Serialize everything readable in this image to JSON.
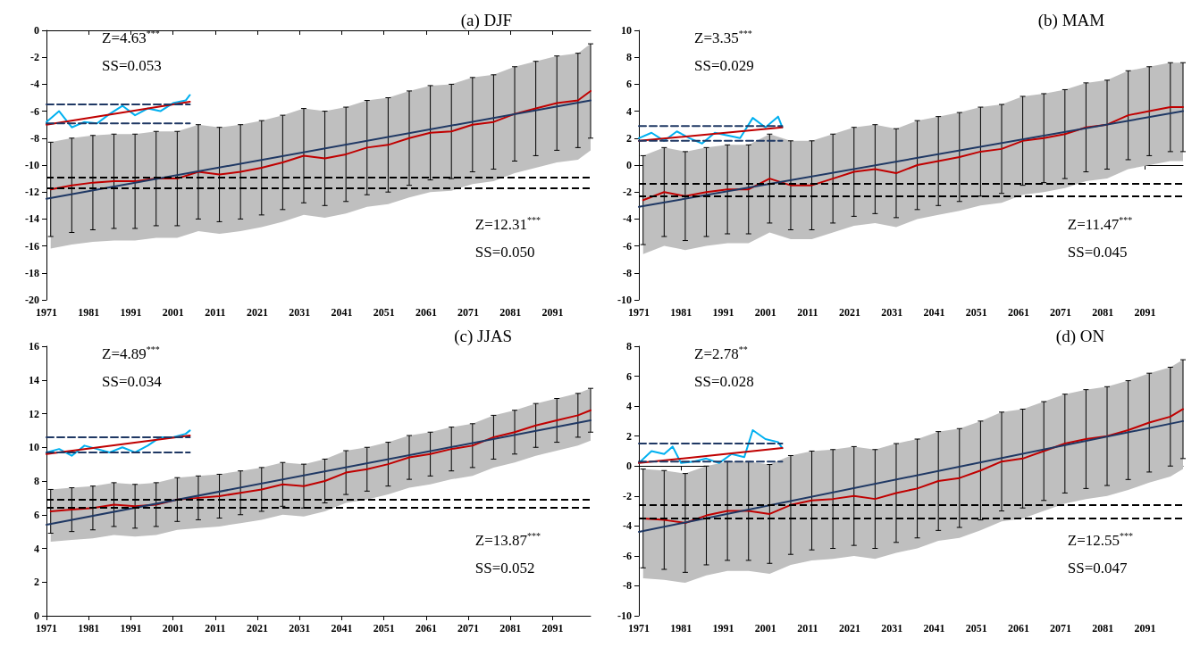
{
  "chart_data": [
    {
      "type": "line",
      "title": "(a) DJF",
      "marker": "none",
      "xlim": [
        1971,
        2100
      ],
      "xticks": [
        1971,
        1981,
        1991,
        2001,
        2011,
        2021,
        2031,
        2041,
        2051,
        2061,
        2071,
        2081,
        2091
      ],
      "ylim": [
        -20,
        0
      ],
      "yticks": [
        -20,
        -18,
        -16,
        -14,
        -12,
        -10,
        -8,
        -6,
        -4,
        -2,
        0
      ],
      "annotations": [
        "Z=4.63$^{***}$",
        "SS=0.053",
        "Z=12.31$^{***}$",
        "SS=0.050"
      ],
      "ref_lines": [
        {
          "axis": "y",
          "value": -10.9,
          "color": "#000000",
          "line_style": "dashed"
        },
        {
          "axis": "y",
          "value": -11.7,
          "color": "#000000",
          "line_style": "dashed"
        }
      ],
      "series": [
        {
          "color": "#c00000",
          "x": [
            1972,
            1977,
            1982,
            1987,
            1992,
            1997,
            2002,
            2007,
            2012,
            2017,
            2022,
            2027,
            2032,
            2037,
            2042,
            2047,
            2052,
            2057,
            2062,
            2067,
            2072,
            2077,
            2082,
            2087,
            2092,
            2097,
            2100
          ],
          "values": [
            -11.8,
            -11.5,
            -11.3,
            -11.2,
            -11.2,
            -11.0,
            -11.0,
            -10.5,
            -10.7,
            -10.5,
            -10.2,
            -9.8,
            -9.3,
            -9.5,
            -9.2,
            -8.7,
            -8.5,
            -8.0,
            -7.6,
            -7.5,
            -7.0,
            -6.8,
            -6.2,
            -5.8,
            -5.4,
            -5.2,
            -4.5
          ],
          "errors": [
            3.5,
            3.5,
            3.5,
            3.5,
            3.5,
            3.5,
            3.5,
            3.5,
            3.5,
            3.5,
            3.5,
            3.5,
            3.5,
            3.5,
            3.5,
            3.5,
            3.5,
            3.5,
            3.5,
            3.5,
            3.5,
            3.5,
            3.5,
            3.5,
            3.5,
            3.5,
            3.5
          ],
          "lower": [
            -16.2,
            -15.9,
            -15.7,
            -15.6,
            -15.6,
            -15.4,
            -15.4,
            -14.9,
            -15.1,
            -14.9,
            -14.6,
            -14.2,
            -13.7,
            -13.9,
            -13.6,
            -13.1,
            -12.9,
            -12.4,
            -12.0,
            -11.9,
            -11.4,
            -11.2,
            -10.6,
            -10.2,
            -9.8,
            -9.6,
            -8.9
          ],
          "upper": [
            -8.3,
            -8.0,
            -7.8,
            -7.7,
            -7.7,
            -7.5,
            -7.5,
            -7.0,
            -7.2,
            -7.0,
            -6.7,
            -6.3,
            -5.8,
            -6.0,
            -5.7,
            -5.2,
            -5.0,
            -4.5,
            -4.1,
            -4.0,
            -3.5,
            -3.3,
            -2.7,
            -2.3,
            -1.9,
            -1.7,
            -1.0
          ]
        },
        {
          "color": "#00b0f0",
          "x": [
            1971,
            1974,
            1977,
            1980,
            1983,
            1986,
            1989,
            1992,
            1995,
            1998,
            2001,
            2004,
            2005
          ],
          "values": [
            -6.8,
            -6.0,
            -7.2,
            -6.8,
            -6.9,
            -6.2,
            -5.6,
            -6.3,
            -5.8,
            -6.0,
            -5.4,
            -5.2,
            -4.8
          ]
        },
        {
          "color": "#c00000",
          "x": [
            1971,
            2005
          ],
          "values": [
            -7.0,
            -5.3
          ]
        },
        {
          "color": "#1f3864",
          "x": [
            1971,
            2100
          ],
          "values": [
            -12.5,
            -5.2
          ]
        },
        {
          "color": "#1f3864",
          "line_style": "dashed",
          "x": [
            1971,
            2005
          ],
          "values": [
            -5.5,
            -5.5
          ]
        },
        {
          "color": "#1f3864",
          "line_style": "dashed",
          "x": [
            1971,
            2005
          ],
          "values": [
            -6.9,
            -6.9
          ]
        }
      ]
    },
    {
      "type": "line",
      "title": "(b) MAM",
      "marker": "none",
      "xlim": [
        1971,
        2100
      ],
      "xticks": [
        1971,
        1981,
        1991,
        2001,
        2011,
        2021,
        2031,
        2041,
        2051,
        2061,
        2071,
        2081,
        2091
      ],
      "ylim": [
        -10,
        10
      ],
      "yticks": [
        -10,
        -8,
        -6,
        -4,
        -2,
        0,
        2,
        4,
        6,
        8,
        10
      ],
      "annotations": [
        "Z=3.35$^{***}$",
        "SS=0.029",
        "Z=11.47$^{***}$",
        "SS=0.045"
      ],
      "ref_lines": [
        {
          "axis": "y",
          "value": -1.4,
          "color": "#000000",
          "line_style": "dashed"
        },
        {
          "axis": "y",
          "value": -2.3,
          "color": "#000000",
          "line_style": "dashed"
        }
      ],
      "series": [
        {
          "color": "#c00000",
          "x": [
            1972,
            1977,
            1982,
            1987,
            1992,
            1997,
            2002,
            2007,
            2012,
            2017,
            2022,
            2027,
            2032,
            2037,
            2042,
            2047,
            2052,
            2057,
            2062,
            2067,
            2072,
            2077,
            2082,
            2087,
            2092,
            2097,
            2100
          ],
          "values": [
            -2.6,
            -2.0,
            -2.3,
            -2.0,
            -1.8,
            -1.8,
            -1.0,
            -1.5,
            -1.5,
            -1.0,
            -0.5,
            -0.3,
            -0.6,
            0.0,
            0.3,
            0.6,
            1.0,
            1.2,
            1.8,
            2.0,
            2.3,
            2.8,
            3.0,
            3.7,
            4.0,
            4.3,
            4.3
          ],
          "errors": [
            3.3,
            3.3,
            3.3,
            3.3,
            3.3,
            3.3,
            3.3,
            3.3,
            3.3,
            3.3,
            3.3,
            3.3,
            3.3,
            3.3,
            3.3,
            3.3,
            3.3,
            3.3,
            3.3,
            3.3,
            3.3,
            3.3,
            3.3,
            3.3,
            3.3,
            3.3,
            3.3
          ],
          "lower": [
            -6.6,
            -6.0,
            -6.3,
            -6.0,
            -5.8,
            -5.8,
            -5.0,
            -5.5,
            -5.5,
            -5.0,
            -4.5,
            -4.3,
            -4.6,
            -4.0,
            -3.7,
            -3.4,
            -3.0,
            -2.8,
            -2.2,
            -2.0,
            -1.7,
            -1.2,
            -1.0,
            -0.3,
            0.0,
            0.3,
            0.3
          ],
          "upper": [
            0.7,
            1.3,
            1.0,
            1.3,
            1.5,
            1.5,
            2.3,
            1.8,
            1.8,
            2.3,
            2.8,
            3.0,
            2.7,
            3.3,
            3.6,
            3.9,
            4.3,
            4.5,
            5.1,
            5.3,
            5.6,
            6.1,
            6.3,
            7.0,
            7.3,
            7.6,
            7.6
          ]
        },
        {
          "color": "#00b0f0",
          "x": [
            1971,
            1974,
            1977,
            1980,
            1983,
            1986,
            1989,
            1992,
            1995,
            1998,
            2001,
            2004,
            2005
          ],
          "values": [
            2.0,
            2.4,
            1.8,
            2.5,
            2.0,
            1.6,
            2.4,
            2.2,
            2.0,
            3.5,
            2.8,
            3.6,
            2.8
          ]
        },
        {
          "color": "#c00000",
          "x": [
            1971,
            2005
          ],
          "values": [
            1.8,
            2.8
          ]
        },
        {
          "color": "#1f3864",
          "x": [
            1971,
            2100
          ],
          "values": [
            -3.1,
            4.0
          ]
        },
        {
          "color": "#1f3864",
          "line_style": "dashed",
          "x": [
            1971,
            2005
          ],
          "values": [
            2.9,
            2.9
          ]
        },
        {
          "color": "#1f3864",
          "line_style": "dashed",
          "x": [
            1971,
            2005
          ],
          "values": [
            1.8,
            1.8
          ]
        }
      ]
    },
    {
      "type": "line",
      "title": "(c) JJAS",
      "marker": "none",
      "xlim": [
        1971,
        2100
      ],
      "xticks": [
        1971,
        1981,
        1991,
        2001,
        2011,
        2021,
        2031,
        2041,
        2051,
        2061,
        2071,
        2081,
        2091
      ],
      "ylim": [
        0,
        16
      ],
      "yticks": [
        0,
        2,
        4,
        6,
        8,
        10,
        12,
        14,
        16
      ],
      "annotations": [
        "Z=4.89$^{***}$",
        "SS=0.034",
        "Z=13.87$^{***}$",
        "SS=0.052"
      ],
      "ref_lines": [
        {
          "axis": "y",
          "value": 6.9,
          "color": "#000000",
          "line_style": "dashed"
        },
        {
          "axis": "y",
          "value": 6.4,
          "color": "#000000",
          "line_style": "dashed"
        }
      ],
      "series": [
        {
          "color": "#c00000",
          "x": [
            1972,
            1977,
            1982,
            1987,
            1992,
            1997,
            2002,
            2007,
            2012,
            2017,
            2022,
            2027,
            2032,
            2037,
            2042,
            2047,
            2052,
            2057,
            2062,
            2067,
            2072,
            2077,
            2082,
            2087,
            2092,
            2097,
            2100
          ],
          "values": [
            6.2,
            6.3,
            6.4,
            6.6,
            6.5,
            6.6,
            6.9,
            7.0,
            7.1,
            7.3,
            7.5,
            7.8,
            7.7,
            8.0,
            8.5,
            8.7,
            9.0,
            9.4,
            9.6,
            9.9,
            10.1,
            10.6,
            10.9,
            11.3,
            11.6,
            11.9,
            12.2
          ],
          "errors": [
            1.3,
            1.3,
            1.3,
            1.3,
            1.3,
            1.3,
            1.3,
            1.3,
            1.3,
            1.3,
            1.3,
            1.3,
            1.3,
            1.3,
            1.3,
            1.3,
            1.3,
            1.3,
            1.3,
            1.3,
            1.3,
            1.3,
            1.3,
            1.3,
            1.3,
            1.3,
            1.3
          ],
          "lower": [
            4.4,
            4.5,
            4.6,
            4.8,
            4.7,
            4.8,
            5.1,
            5.2,
            5.3,
            5.5,
            5.7,
            6.0,
            5.9,
            6.2,
            6.7,
            6.9,
            7.2,
            7.6,
            7.8,
            8.1,
            8.3,
            8.8,
            9.1,
            9.5,
            9.8,
            10.1,
            10.4
          ],
          "upper": [
            7.5,
            7.6,
            7.7,
            7.9,
            7.8,
            7.9,
            8.2,
            8.3,
            8.4,
            8.6,
            8.8,
            9.1,
            9.0,
            9.3,
            9.8,
            10.0,
            10.3,
            10.7,
            10.9,
            11.2,
            11.4,
            11.9,
            12.2,
            12.6,
            12.9,
            13.2,
            13.5
          ]
        },
        {
          "color": "#00b0f0",
          "x": [
            1971,
            1974,
            1977,
            1980,
            1983,
            1986,
            1989,
            1992,
            1995,
            1998,
            2001,
            2004,
            2005
          ],
          "values": [
            9.7,
            9.9,
            9.5,
            10.1,
            9.9,
            9.7,
            10.0,
            9.7,
            10.1,
            10.6,
            10.6,
            10.8,
            11.0
          ]
        },
        {
          "color": "#c00000",
          "x": [
            1971,
            2005
          ],
          "values": [
            9.6,
            10.7
          ]
        },
        {
          "color": "#1f3864",
          "x": [
            1971,
            2100
          ],
          "values": [
            5.4,
            11.6
          ]
        },
        {
          "color": "#1f3864",
          "line_style": "dashed",
          "x": [
            1971,
            2005
          ],
          "values": [
            10.6,
            10.6
          ]
        },
        {
          "color": "#1f3864",
          "line_style": "dashed",
          "x": [
            1971,
            2005
          ],
          "values": [
            9.7,
            9.7
          ]
        }
      ]
    },
    {
      "type": "line",
      "title": "(d) ON",
      "marker": "none",
      "xlim": [
        1971,
        2100
      ],
      "xticks": [
        1971,
        1981,
        1991,
        2001,
        2011,
        2021,
        2031,
        2041,
        2051,
        2061,
        2071,
        2081,
        2091
      ],
      "ylim": [
        -10,
        8
      ],
      "yticks": [
        -10,
        -8,
        -6,
        -4,
        -2,
        0,
        2,
        4,
        6,
        8
      ],
      "annotations": [
        "Z=2.78$^{**}$",
        "SS=0.028",
        "Z=12.55$^{***}$",
        "SS=0.047"
      ],
      "ref_lines": [
        {
          "axis": "y",
          "value": -2.6,
          "color": "#000000",
          "line_style": "dashed"
        },
        {
          "axis": "y",
          "value": -3.5,
          "color": "#000000",
          "line_style": "dashed"
        }
      ],
      "series": [
        {
          "color": "#c00000",
          "x": [
            1972,
            1977,
            1982,
            1987,
            1992,
            1997,
            2002,
            2007,
            2012,
            2017,
            2022,
            2027,
            2032,
            2037,
            2042,
            2047,
            2052,
            2057,
            2062,
            2067,
            2072,
            2077,
            2082,
            2087,
            2092,
            2097,
            2100
          ],
          "values": [
            -3.5,
            -3.6,
            -3.8,
            -3.3,
            -3.0,
            -3.0,
            -3.2,
            -2.6,
            -2.3,
            -2.2,
            -2.0,
            -2.2,
            -1.8,
            -1.5,
            -1.0,
            -0.8,
            -0.3,
            0.3,
            0.5,
            1.0,
            1.5,
            1.8,
            2.0,
            2.4,
            2.9,
            3.3,
            3.8
          ],
          "errors": [
            3.3,
            3.3,
            3.3,
            3.3,
            3.3,
            3.3,
            3.3,
            3.3,
            3.3,
            3.3,
            3.3,
            3.3,
            3.3,
            3.3,
            3.3,
            3.3,
            3.3,
            3.3,
            3.3,
            3.3,
            3.3,
            3.3,
            3.3,
            3.3,
            3.3,
            3.3,
            3.3
          ],
          "lower": [
            -7.5,
            -7.6,
            -7.8,
            -7.3,
            -7.0,
            -7.0,
            -7.2,
            -6.6,
            -6.3,
            -6.2,
            -6.0,
            -6.2,
            -5.8,
            -5.5,
            -5.0,
            -4.8,
            -4.3,
            -3.7,
            -3.5,
            -3.0,
            -2.5,
            -2.2,
            -2.0,
            -1.6,
            -1.1,
            -0.7,
            -0.2
          ],
          "upper": [
            -0.2,
            -0.3,
            -0.5,
            0.0,
            0.3,
            0.3,
            0.1,
            0.7,
            1.0,
            1.1,
            1.3,
            1.1,
            1.5,
            1.8,
            2.3,
            2.5,
            3.0,
            3.6,
            3.8,
            4.3,
            4.8,
            5.1,
            5.3,
            5.7,
            6.2,
            6.6,
            7.1
          ]
        },
        {
          "color": "#00b0f0",
          "x": [
            1971,
            1974,
            1977,
            1979,
            1981,
            1984,
            1987,
            1990,
            1993,
            1996,
            1998,
            2001,
            2004,
            2005
          ],
          "values": [
            0.2,
            1.0,
            0.8,
            1.3,
            0.2,
            0.3,
            0.5,
            0.2,
            0.8,
            0.6,
            2.4,
            1.8,
            1.6,
            1.2
          ]
        },
        {
          "color": "#c00000",
          "x": [
            1971,
            2005
          ],
          "values": [
            0.2,
            1.2
          ]
        },
        {
          "color": "#1f3864",
          "x": [
            1971,
            2100
          ],
          "values": [
            -4.4,
            3.0
          ]
        },
        {
          "color": "#1f3864",
          "line_style": "dashed",
          "x": [
            1971,
            2005
          ],
          "values": [
            1.5,
            1.5
          ]
        },
        {
          "color": "#1f3864",
          "line_style": "dashed",
          "x": [
            1971,
            2005
          ],
          "values": [
            0.3,
            0.3
          ]
        }
      ]
    }
  ]
}
